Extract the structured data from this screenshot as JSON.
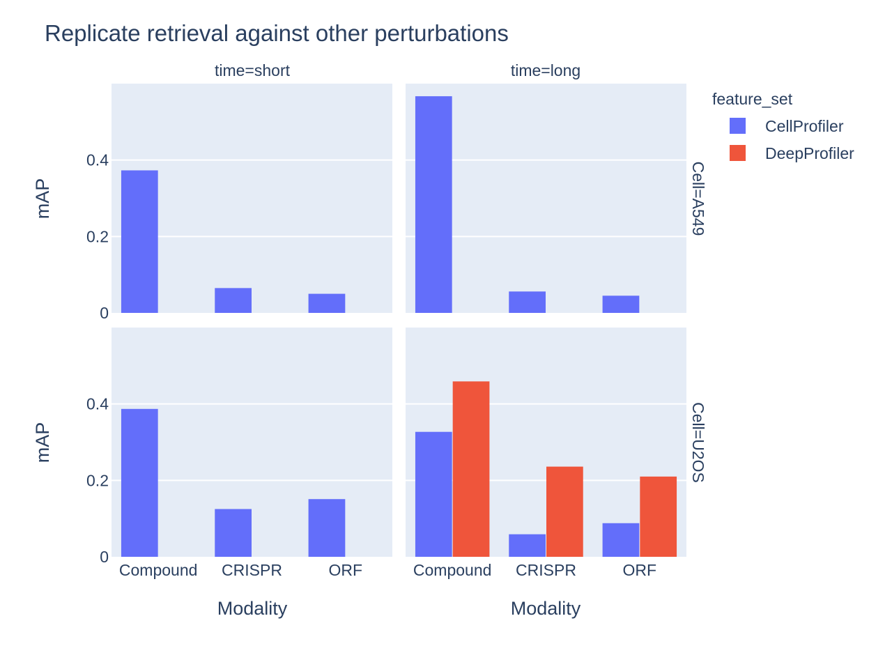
{
  "chart_data": {
    "type": "bar",
    "title": "Replicate retrieval against other perturbations",
    "xlabel": "Modality",
    "ylabel": "mAP",
    "categories": [
      "Compound",
      "CRISPR",
      "ORF"
    ],
    "ylim": [
      0,
      0.6
    ],
    "yticks": [
      0,
      0.2,
      0.4
    ],
    "ytick_labels": [
      "0",
      "0.2",
      "0.4"
    ],
    "grid": true,
    "barmode": "group",
    "legend": {
      "title": "feature_set",
      "position": "top-right",
      "items": [
        {
          "name": "CellProfiler",
          "color": "#636efa"
        },
        {
          "name": "DeepProfiler",
          "color": "#ef553b"
        }
      ]
    },
    "columns": [
      "time=short",
      "time=long"
    ],
    "rows": [
      "Cell=A549",
      "Cell=U2OS"
    ],
    "panels": [
      {
        "row": "Cell=A549",
        "col": "time=short",
        "series": [
          {
            "name": "CellProfiler",
            "values": [
              0.373,
              0.065,
              0.05
            ]
          },
          {
            "name": "DeepProfiler",
            "values": [
              null,
              null,
              null
            ]
          }
        ]
      },
      {
        "row": "Cell=A549",
        "col": "time=long",
        "series": [
          {
            "name": "CellProfiler",
            "values": [
              0.567,
              0.056,
              0.045
            ]
          },
          {
            "name": "DeepProfiler",
            "values": [
              null,
              null,
              null
            ]
          }
        ]
      },
      {
        "row": "Cell=U2OS",
        "col": "time=short",
        "series": [
          {
            "name": "CellProfiler",
            "values": [
              0.387,
              0.125,
              0.151
            ]
          },
          {
            "name": "DeepProfiler",
            "values": [
              null,
              null,
              null
            ]
          }
        ]
      },
      {
        "row": "Cell=U2OS",
        "col": "time=long",
        "series": [
          {
            "name": "CellProfiler",
            "values": [
              0.327,
              0.059,
              0.088
            ]
          },
          {
            "name": "DeepProfiler",
            "values": [
              0.459,
              0.236,
              0.21
            ]
          }
        ]
      }
    ]
  },
  "colors": {
    "plot_bg": "#e5ecf6",
    "grid": "#ffffff",
    "text": "#2a3f5f"
  }
}
